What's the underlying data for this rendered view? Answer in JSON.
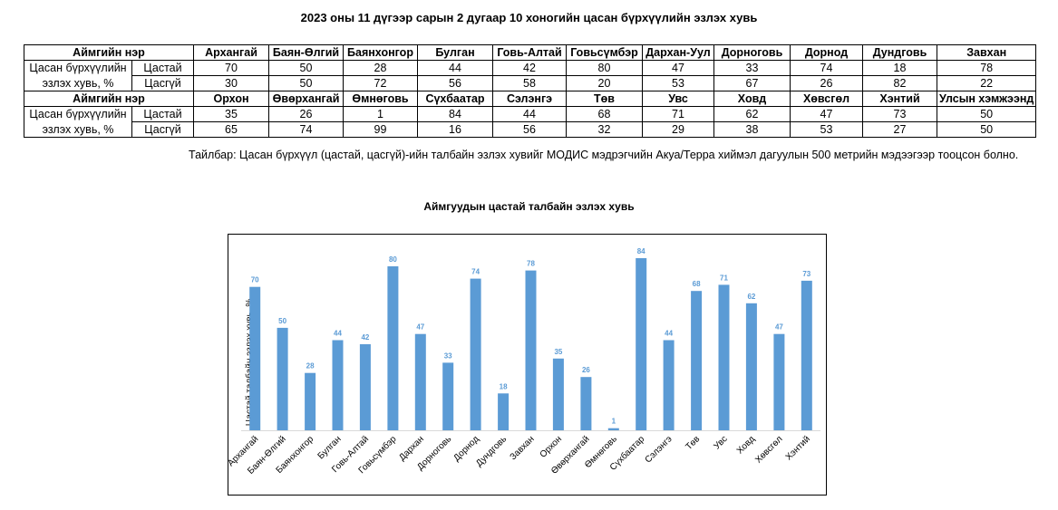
{
  "page": {
    "title": "2023 оны 11 дүгээр сарын 2 дугаар 10 хоногийн цасан бүрхүүлийн эзлэх хувь",
    "note": "Тайлбар: Цасан бүрхүүл (цастай, цасгүй)-ийн талбайн эзлэх хувийг МОДИС мэдрэгчийн Акуа/Терра хиймэл дагуулын 500 метрийн мэдээгээр тооцсон болно."
  },
  "table": {
    "header_label": "Аймгийн нэр",
    "row_label_line1": "Цасан бүрхүүлийн",
    "row_label_line2": "эзлэх хувь, %",
    "snow_label": "Цастай",
    "nosnow_label": "Цасгүй",
    "block1": {
      "names": [
        "Архангай",
        "Баян-Өлгий",
        "Баянхонгор",
        "Булган",
        "Говь-Алтай",
        "Говьсүмбэр",
        "Дархан-Уул",
        "Дорноговь",
        "Дорнод",
        "Дундговь",
        "Завхан"
      ],
      "snow": [
        "70",
        "50",
        "28",
        "44",
        "42",
        "80",
        "47",
        "33",
        "74",
        "18",
        "78"
      ],
      "nosnow": [
        "30",
        "50",
        "72",
        "56",
        "58",
        "20",
        "53",
        "67",
        "26",
        "82",
        "22"
      ]
    },
    "block2": {
      "names": [
        "Орхон",
        "Өвөрхангай",
        "Өмнөговь",
        "Сүхбаатар",
        "Сэлэнгэ",
        "Төв",
        "Увс",
        "Ховд",
        "Хөвсгөл",
        "Хэнтий",
        "Улсын хэмжээнд"
      ],
      "snow": [
        "35",
        "26",
        "1",
        "84",
        "44",
        "68",
        "71",
        "62",
        "47",
        "73",
        "50"
      ],
      "nosnow": [
        "65",
        "74",
        "99",
        "16",
        "56",
        "32",
        "29",
        "38",
        "53",
        "27",
        "50"
      ]
    }
  },
  "chart_data": {
    "type": "bar",
    "title": "Аймгуудын цастай талбайн эзлэх хувь",
    "ylabel": "Цастай талбайн эзлэх хувь, %",
    "xlabel": "",
    "categories": [
      "Архангай",
      "Баян-Өлгий",
      "Баянхонгор",
      "Булган",
      "Говь-Алтай",
      "Говьсүмбэр",
      "Дархан",
      "Дорноговь",
      "Дорнод",
      "Дундговь",
      "Завхан",
      "Орхон",
      "Өвөрхангай",
      "Өмнөговь",
      "Сүхбаатар",
      "Сэлэнгэ",
      "Төв",
      "Увс",
      "Ховд",
      "Хөвсгөл",
      "Хэнтий"
    ],
    "values": [
      70,
      50,
      28,
      44,
      42,
      80,
      47,
      33,
      74,
      18,
      78,
      35,
      26,
      1,
      84,
      44,
      68,
      71,
      62,
      47,
      73
    ],
    "ylim": [
      0,
      84
    ],
    "grid": false,
    "bar_color": "#5b9bd5",
    "label_color": "#5b9bd5",
    "axis_color": "#d9d9d9"
  }
}
